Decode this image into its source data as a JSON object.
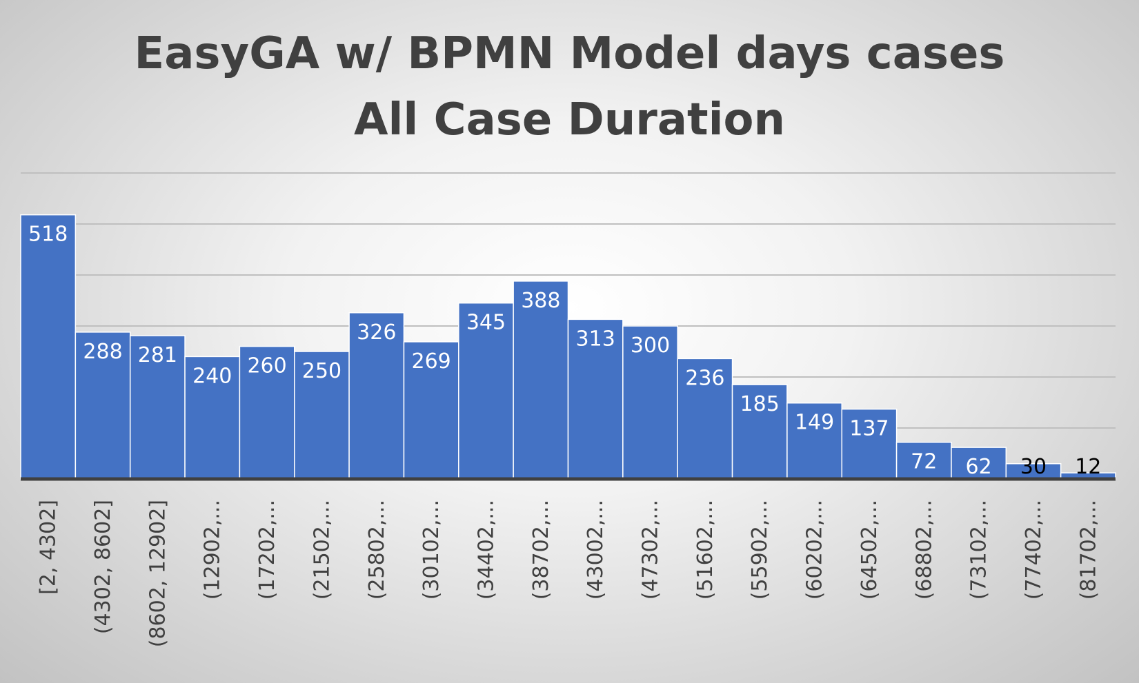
{
  "chart_data": {
    "type": "bar",
    "title": [
      "EasyGA w/ BPMN Model days cases",
      "All Case Duration"
    ],
    "categories": [
      "[2, 4302]",
      "(4302, 8602]",
      "(8602, 12902]",
      "(12902,...",
      "(17202,...",
      "(21502,...",
      "(25802,...",
      "(30102,...",
      "(34402,...",
      "(38702,...",
      "(43002,...",
      "(47302,...",
      "(51602,...",
      "(55902,...",
      "(60202,...",
      "(64502,...",
      "(68802,...",
      "(73102,...",
      "(77402,...",
      "(81702,..."
    ],
    "values": [
      518,
      288,
      281,
      240,
      260,
      250,
      326,
      269,
      345,
      388,
      313,
      300,
      236,
      185,
      149,
      137,
      72,
      62,
      30,
      12
    ],
    "ylim": [
      0,
      600
    ],
    "gridlines": true,
    "bar_color": "#4472c4",
    "label_color": "#ffffff",
    "small_label_color": "#000000",
    "grid_color": "#bfbfbf",
    "axis_color": "#404040"
  }
}
